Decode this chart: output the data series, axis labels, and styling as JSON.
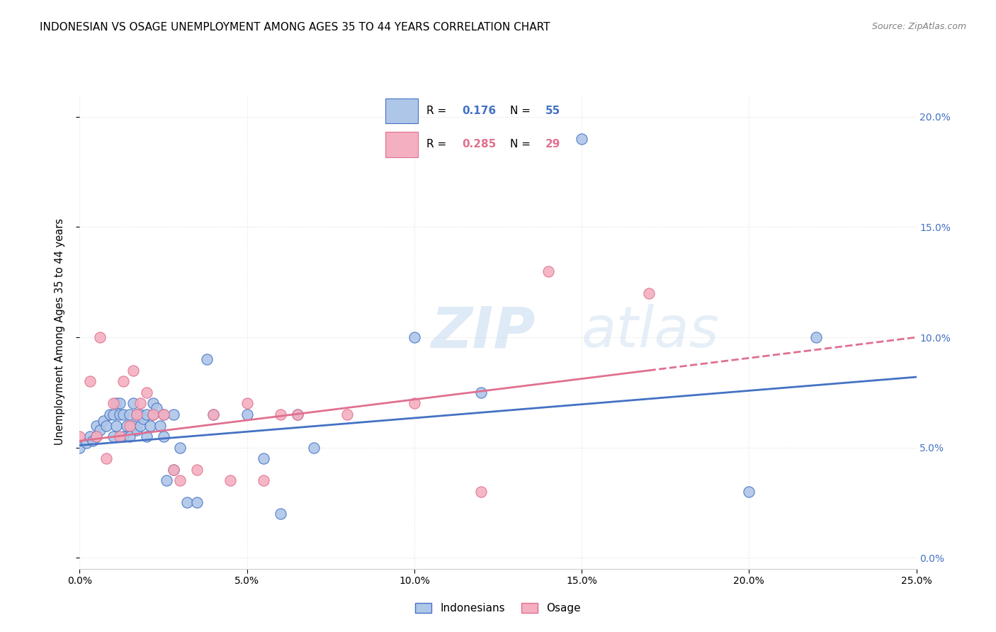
{
  "title": "INDONESIAN VS OSAGE UNEMPLOYMENT AMONG AGES 35 TO 44 YEARS CORRELATION CHART",
  "source": "Source: ZipAtlas.com",
  "ylabel": "Unemployment Among Ages 35 to 44 years",
  "xlim": [
    0.0,
    0.25
  ],
  "ylim": [
    -0.005,
    0.21
  ],
  "indonesian_color": "#aec6e8",
  "osage_color": "#f4afc0",
  "indonesian_line_color": "#4472c4",
  "osage_line_color": "#e07090",
  "R_indonesian": 0.176,
  "N_indonesian": 55,
  "R_osage": 0.285,
  "N_osage": 29,
  "indonesian_points_x": [
    0.0,
    0.002,
    0.003,
    0.004,
    0.005,
    0.005,
    0.006,
    0.007,
    0.008,
    0.009,
    0.01,
    0.01,
    0.011,
    0.011,
    0.012,
    0.012,
    0.013,
    0.013,
    0.014,
    0.015,
    0.015,
    0.016,
    0.016,
    0.017,
    0.017,
    0.018,
    0.018,
    0.019,
    0.02,
    0.02,
    0.021,
    0.022,
    0.022,
    0.023,
    0.024,
    0.025,
    0.025,
    0.026,
    0.028,
    0.028,
    0.03,
    0.032,
    0.035,
    0.038,
    0.04,
    0.05,
    0.055,
    0.06,
    0.065,
    0.07,
    0.1,
    0.12,
    0.15,
    0.2,
    0.22
  ],
  "indonesian_points_y": [
    0.05,
    0.052,
    0.055,
    0.053,
    0.055,
    0.06,
    0.058,
    0.062,
    0.06,
    0.065,
    0.055,
    0.065,
    0.06,
    0.07,
    0.065,
    0.07,
    0.055,
    0.065,
    0.06,
    0.055,
    0.065,
    0.06,
    0.07,
    0.058,
    0.065,
    0.06,
    0.065,
    0.063,
    0.055,
    0.065,
    0.06,
    0.065,
    0.07,
    0.068,
    0.06,
    0.055,
    0.065,
    0.035,
    0.04,
    0.065,
    0.05,
    0.025,
    0.025,
    0.09,
    0.065,
    0.065,
    0.045,
    0.02,
    0.065,
    0.05,
    0.1,
    0.075,
    0.19,
    0.03,
    0.1
  ],
  "osage_points_x": [
    0.0,
    0.003,
    0.005,
    0.006,
    0.008,
    0.01,
    0.012,
    0.013,
    0.015,
    0.016,
    0.017,
    0.018,
    0.02,
    0.022,
    0.025,
    0.028,
    0.03,
    0.035,
    0.04,
    0.045,
    0.05,
    0.055,
    0.06,
    0.065,
    0.08,
    0.1,
    0.12,
    0.14,
    0.17
  ],
  "osage_points_y": [
    0.055,
    0.08,
    0.055,
    0.1,
    0.045,
    0.07,
    0.055,
    0.08,
    0.06,
    0.085,
    0.065,
    0.07,
    0.075,
    0.065,
    0.065,
    0.04,
    0.035,
    0.04,
    0.065,
    0.035,
    0.07,
    0.035,
    0.065,
    0.065,
    0.065,
    0.07,
    0.03,
    0.13,
    0.12
  ],
  "indonesian_trend_x": [
    0.0,
    0.25
  ],
  "indonesian_trend_y": [
    0.051,
    0.082
  ],
  "osage_trend_x": [
    0.0,
    0.25
  ],
  "osage_trend_y_solid_end": 0.17,
  "osage_trend_y": [
    0.053,
    0.1
  ],
  "watermark_zip": "ZIP",
  "watermark_atlas": "atlas",
  "background_color": "#ffffff",
  "grid_color": "#e0e0e0",
  "right_tick_color": "#4472c4",
  "left_tick_color": "#000000"
}
